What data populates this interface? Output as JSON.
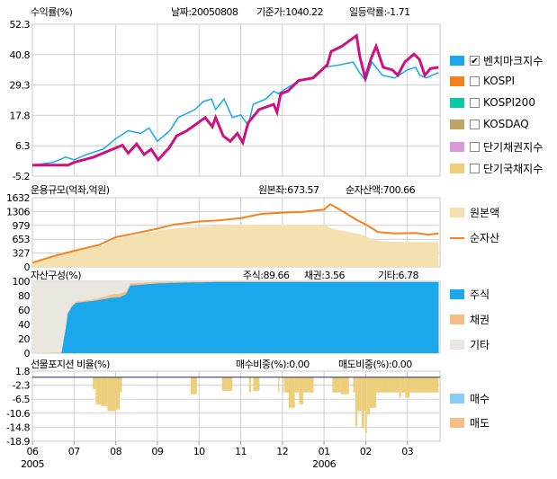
{
  "colors": {
    "benchmark": "#1aa7ec",
    "fund": "#cc1180",
    "kospi": "#f5821f",
    "kospi200": "#0ccaa8",
    "kosdaq": "#bfa46a",
    "short_bond": "#d89ad8",
    "short_gov": "#ecce7b",
    "principal": "#f5e0b0",
    "nav": "#f5821f",
    "stock": "#1aa7ec",
    "bond": "#f7bd86",
    "other": "#eae7e0",
    "sell": "#ecce7b",
    "buy": "#88ccf5"
  },
  "header": {
    "title": "수익률(%)",
    "date": "날짜:20050808",
    "base_price": "기준가:1040.22",
    "daily_change": "일등락률:-1.71"
  },
  "legend": [
    {
      "label": "벤치마크지수",
      "checked": true
    },
    {
      "label": "KOSPI",
      "checked": false
    },
    {
      "label": "KOSPI200",
      "checked": false
    },
    {
      "label": "KOSDAQ",
      "checked": false
    },
    {
      "label": "단기채권지수",
      "checked": false
    },
    {
      "label": "단기국채지수",
      "checked": false
    }
  ],
  "aum": {
    "title": "운용규모(억좌,억원)",
    "principal_value": "원본좌:673.57",
    "nav_value": "순자산액:700.66",
    "legend": [
      "원본액",
      "순자산"
    ]
  },
  "assets": {
    "title": "자산구성(%)",
    "stock": "주식:89.66",
    "bond": "채권:3.56",
    "other": "기타:6.78",
    "legend": [
      "주식",
      "채권",
      "기타"
    ]
  },
  "futures": {
    "title": "선물포지션 비율(%)",
    "buy": "매수비중(%):0.00",
    "sell": "매도비중(%):0.00",
    "legend": [
      "매수",
      "매도"
    ]
  },
  "xaxis": {
    "months": [
      "06",
      "07",
      "08",
      "09",
      "10",
      "11",
      "12",
      "01",
      "02",
      "03"
    ],
    "years": [
      {
        "label": "2005",
        "month_index": 0
      },
      {
        "label": "2006",
        "month_index": 7
      }
    ]
  },
  "chart_data": [
    {
      "type": "line",
      "title": "수익률(%)",
      "ylim": [
        -5.2,
        52.3
      ],
      "yticks": [
        "52.3",
        "40.8",
        "29.3",
        "17.8",
        "6.3",
        "-5.2"
      ],
      "x_unit": "months since 2005-06",
      "series": [
        {
          "name": "fund",
          "points": [
            [
              0,
              -1
            ],
            [
              0.86,
              -1
            ],
            [
              1,
              0
            ],
            [
              1.47,
              2
            ],
            [
              2,
              5.5
            ],
            [
              2.16,
              6.5
            ],
            [
              2.3,
              3.5
            ],
            [
              2.5,
              7
            ],
            [
              2.68,
              3
            ],
            [
              2.85,
              5
            ],
            [
              3.02,
              1
            ],
            [
              3.28,
              5.5
            ],
            [
              3.46,
              10
            ],
            [
              3.71,
              12
            ],
            [
              3.93,
              14.5
            ],
            [
              4.15,
              17
            ],
            [
              4.32,
              13.5
            ],
            [
              4.4,
              17
            ],
            [
              4.58,
              10
            ],
            [
              4.75,
              8
            ],
            [
              4.92,
              11
            ],
            [
              5.05,
              7.5
            ],
            [
              5.18,
              15
            ],
            [
              5.44,
              20
            ],
            [
              5.79,
              22
            ],
            [
              5.87,
              19
            ],
            [
              5.96,
              26
            ],
            [
              6.13,
              27
            ],
            [
              6.39,
              31
            ],
            [
              6.74,
              32
            ],
            [
              7.08,
              37
            ],
            [
              7.17,
              42
            ],
            [
              7.43,
              44
            ],
            [
              7.78,
              48
            ],
            [
              7.86,
              40
            ],
            [
              7.99,
              32
            ],
            [
              8.12,
              39
            ],
            [
              8.25,
              44
            ],
            [
              8.42,
              36
            ],
            [
              8.64,
              35
            ],
            [
              8.77,
              33
            ],
            [
              8.94,
              38
            ],
            [
              9.16,
              41
            ],
            [
              9.29,
              39
            ],
            [
              9.42,
              33
            ],
            [
              9.55,
              35.5
            ],
            [
              9.75,
              36
            ]
          ]
        },
        {
          "name": "벤치마크지수",
          "points": [
            [
              0,
              -1
            ],
            [
              0.5,
              0
            ],
            [
              0.8,
              2
            ],
            [
              1,
              1
            ],
            [
              1.3,
              3
            ],
            [
              1.7,
              5
            ],
            [
              2,
              9
            ],
            [
              2.3,
              12
            ],
            [
              2.6,
              11
            ],
            [
              2.8,
              13
            ],
            [
              3,
              8
            ],
            [
              3.3,
              12
            ],
            [
              3.5,
              17
            ],
            [
              3.9,
              20
            ],
            [
              4.1,
              23
            ],
            [
              4.3,
              24
            ],
            [
              4.4,
              20
            ],
            [
              4.6,
              24
            ],
            [
              4.8,
              17
            ],
            [
              5,
              18
            ],
            [
              5.18,
              14
            ],
            [
              5.3,
              22
            ],
            [
              5.6,
              24
            ],
            [
              5.8,
              27
            ],
            [
              5.9,
              26
            ],
            [
              6.1,
              28
            ],
            [
              6.4,
              31
            ],
            [
              6.7,
              32
            ],
            [
              7,
              36
            ],
            [
              7.4,
              37
            ],
            [
              7.7,
              38
            ],
            [
              7.85,
              34
            ],
            [
              8,
              31
            ],
            [
              8.15,
              38
            ],
            [
              8.4,
              33
            ],
            [
              8.7,
              32
            ],
            [
              9,
              35
            ],
            [
              9.2,
              36
            ],
            [
              9.3,
              33
            ],
            [
              9.45,
              32
            ],
            [
              9.75,
              34
            ]
          ]
        }
      ]
    },
    {
      "type": "area",
      "title": "운용규모(억좌,억원)",
      "ylim": [
        0,
        1632
      ],
      "yticks": [
        "1632",
        "1306",
        "979",
        "653",
        "327",
        "0"
      ],
      "series": [
        {
          "name": "원본액",
          "points": [
            [
              0,
              80
            ],
            [
              0.5,
              230
            ],
            [
              1,
              360
            ],
            [
              1.6,
              480
            ],
            [
              2,
              650
            ],
            [
              2.5,
              760
            ],
            [
              3,
              850
            ],
            [
              3.5,
              920
            ],
            [
              4,
              950
            ],
            [
              5,
              990
            ],
            [
              6,
              990
            ],
            [
              7,
              990
            ],
            [
              7.2,
              900
            ],
            [
              7.6,
              820
            ],
            [
              7.9,
              760
            ],
            [
              8.2,
              640
            ],
            [
              8.4,
              600
            ],
            [
              9,
              590
            ],
            [
              9.75,
              590
            ]
          ]
        },
        {
          "name": "순자산",
          "points": [
            [
              0,
              100
            ],
            [
              0.5,
              250
            ],
            [
              1,
              380
            ],
            [
              1.6,
              520
            ],
            [
              2,
              700
            ],
            [
              2.5,
              800
            ],
            [
              3,
              900
            ],
            [
              3.4,
              1000
            ],
            [
              4,
              1070
            ],
            [
              4.5,
              1100
            ],
            [
              5,
              1150
            ],
            [
              5.5,
              1250
            ],
            [
              6,
              1280
            ],
            [
              6.5,
              1300
            ],
            [
              7,
              1350
            ],
            [
              7.15,
              1480
            ],
            [
              7.5,
              1280
            ],
            [
              7.8,
              1100
            ],
            [
              8,
              1000
            ],
            [
              8.3,
              820
            ],
            [
              8.7,
              790
            ],
            [
              9.2,
              800
            ],
            [
              9.5,
              760
            ],
            [
              9.75,
              790
            ]
          ]
        }
      ]
    },
    {
      "type": "area",
      "title": "자산구성(%)",
      "ylim": [
        0,
        100
      ],
      "yticks": [
        "100",
        "80",
        "60",
        "40",
        "20",
        "0"
      ],
      "series": [
        {
          "name": "주식",
          "points": [
            [
              0,
              0
            ],
            [
              0.7,
              0
            ],
            [
              0.72,
              10
            ],
            [
              0.78,
              25
            ],
            [
              0.85,
              55
            ],
            [
              0.95,
              65
            ],
            [
              1.05,
              70
            ],
            [
              1.5,
              73
            ],
            [
              1.9,
              77
            ],
            [
              2.1,
              78
            ],
            [
              2.25,
              82
            ],
            [
              2.35,
              94
            ],
            [
              3,
              97
            ],
            [
              3.5,
              98
            ],
            [
              4.5,
              99
            ],
            [
              5.5,
              99
            ],
            [
              9.75,
              99
            ]
          ]
        },
        {
          "name": "채권",
          "points": [
            [
              0,
              0
            ],
            [
              1.5,
              2
            ],
            [
              2,
              5
            ],
            [
              2.35,
              3
            ],
            [
              3,
              2
            ],
            [
              4,
              1
            ],
            [
              9.75,
              0
            ]
          ]
        }
      ]
    },
    {
      "type": "bar",
      "title": "선물포지션 비율(%)",
      "ylim": [
        -18.9,
        1.8
      ],
      "yticks": [
        "1.8",
        "-2.3",
        "-6.5",
        "-10.6",
        "-14.8",
        "-18.9"
      ],
      "series": [
        {
          "name": "매도",
          "bars": [
            [
              1.45,
              1.52,
              -3.5
            ],
            [
              1.52,
              1.65,
              -8
            ],
            [
              1.65,
              1.8,
              -8.5
            ],
            [
              1.8,
              2.0,
              -10
            ],
            [
              2.0,
              2.1,
              -9.5
            ],
            [
              2.1,
              2.15,
              -4.5
            ],
            [
              3.8,
              3.95,
              -5
            ],
            [
              4.55,
              4.65,
              -4
            ],
            [
              4.65,
              4.8,
              -4
            ],
            [
              5.2,
              5.25,
              -4.5
            ],
            [
              5.3,
              5.45,
              -4
            ],
            [
              5.9,
              5.93,
              -4.5
            ],
            [
              6.0,
              6.03,
              -4.5
            ],
            [
              6.05,
              6.15,
              -4.5
            ],
            [
              6.15,
              6.3,
              -9
            ],
            [
              6.3,
              6.4,
              -4.5
            ],
            [
              6.4,
              6.5,
              -8
            ],
            [
              6.5,
              6.75,
              -4.5
            ],
            [
              7.2,
              7.4,
              -4.5
            ],
            [
              7.4,
              7.6,
              -5
            ],
            [
              7.7,
              7.75,
              -4.5
            ],
            [
              7.75,
              7.8,
              -14.5
            ],
            [
              7.8,
              7.9,
              -10
            ],
            [
              7.9,
              7.97,
              -15
            ],
            [
              7.97,
              8.0,
              -10
            ],
            [
              8.0,
              8.03,
              -16.5
            ],
            [
              8.03,
              8.1,
              -11
            ],
            [
              8.1,
              8.25,
              -9
            ],
            [
              8.25,
              8.4,
              -4.5
            ],
            [
              8.4,
              8.8,
              -4.5
            ],
            [
              8.8,
              8.85,
              -6
            ],
            [
              8.85,
              8.95,
              -4.5
            ],
            [
              8.95,
              9.05,
              -6
            ],
            [
              9.05,
              9.75,
              -4.5
            ]
          ]
        }
      ]
    }
  ]
}
